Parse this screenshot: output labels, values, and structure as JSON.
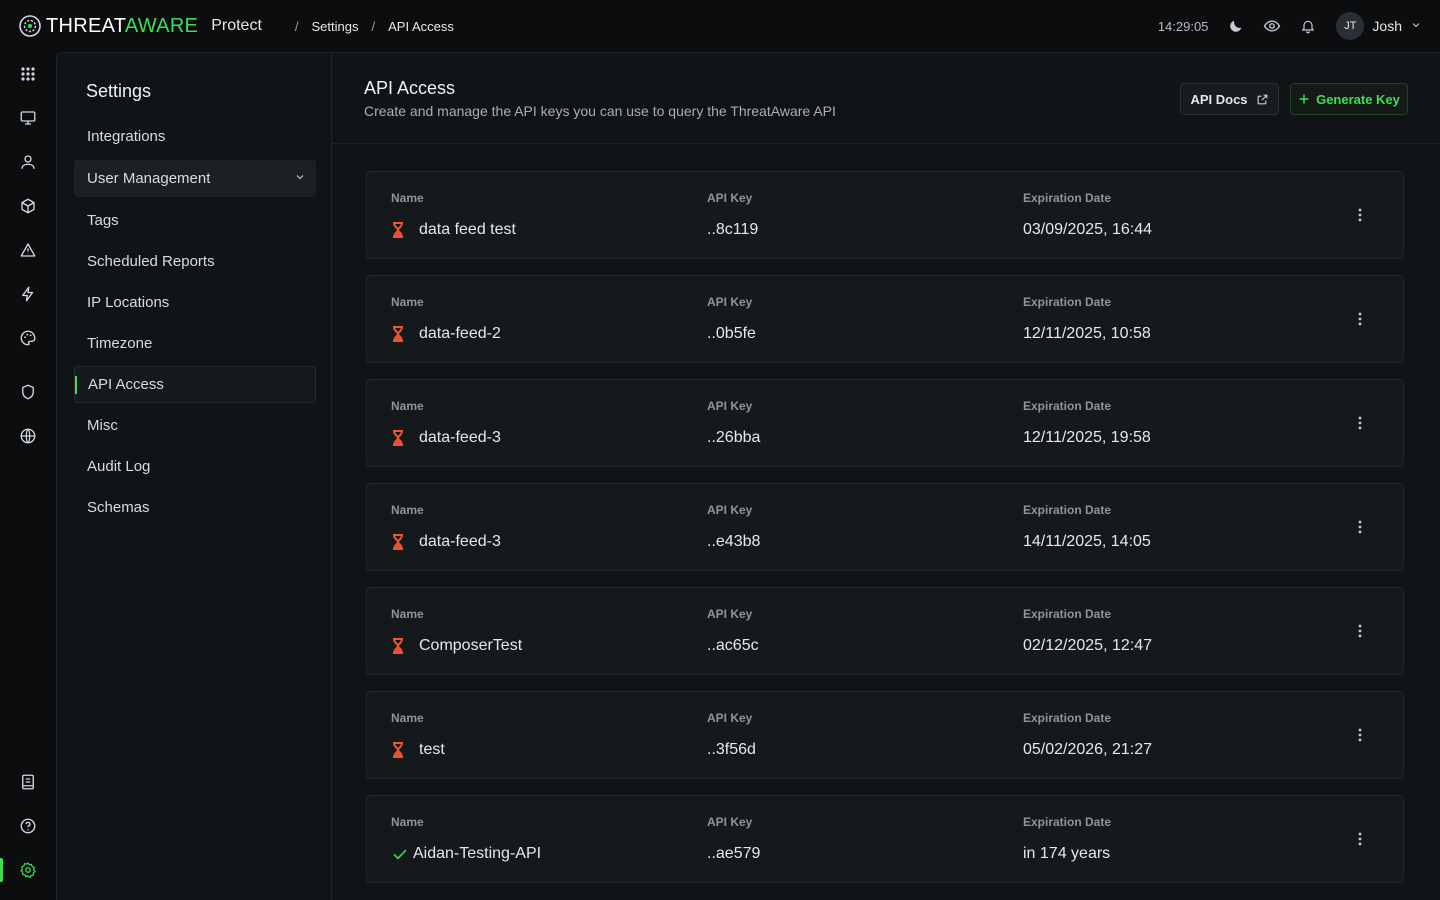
{
  "brand": {
    "threat": "THREAT",
    "aware": "AWARE",
    "product": "Protect"
  },
  "breadcrumb": [
    "Settings",
    "API Access"
  ],
  "topbar": {
    "clock": "14:29:05",
    "user_initials": "JT",
    "user_name": "Josh"
  },
  "rail": {
    "icons": [
      "grid-icon",
      "monitor-icon",
      "user-icon",
      "cube-icon",
      "alert-triangle-icon",
      "bolt-icon",
      "palette-icon",
      "shield-icon",
      "globe-icon",
      "notebook-icon",
      "help-icon",
      "gear-icon"
    ],
    "active": "gear-icon"
  },
  "settings": {
    "title": "Settings",
    "items": [
      {
        "label": "Integrations"
      },
      {
        "label": "User Management"
      },
      {
        "label": "Tags"
      },
      {
        "label": "Scheduled Reports"
      },
      {
        "label": "IP Locations"
      },
      {
        "label": "Timezone"
      },
      {
        "label": "API Access"
      },
      {
        "label": "Misc"
      },
      {
        "label": "Audit Log"
      },
      {
        "label": "Schemas"
      }
    ],
    "active": "API Access"
  },
  "page": {
    "title": "API Access",
    "subtitle": "Create and manage the API keys you can use to query the ThreatAware API",
    "docs_label": "API Docs",
    "generate_label": "Generate Key"
  },
  "columns": {
    "name": "Name",
    "key": "API Key",
    "expiry": "Expiration Date"
  },
  "keys": [
    {
      "name": "data feed test",
      "key": "..8c119",
      "expiry": "03/09/2025, 16:44",
      "status": "expiring"
    },
    {
      "name": "data-feed-2",
      "key": "..0b5fe",
      "expiry": "12/11/2025, 10:58",
      "status": "expiring"
    },
    {
      "name": "data-feed-3",
      "key": "..26bba",
      "expiry": "12/11/2025, 19:58",
      "status": "expiring"
    },
    {
      "name": "data-feed-3",
      "key": "..e43b8",
      "expiry": "14/11/2025, 14:05",
      "status": "expiring"
    },
    {
      "name": "ComposerTest",
      "key": "..ac65c",
      "expiry": "02/12/2025, 12:47",
      "status": "expiring"
    },
    {
      "name": "test",
      "key": "..3f56d",
      "expiry": "05/02/2026, 21:27",
      "status": "expiring"
    },
    {
      "name": "Aidan-Testing-API",
      "key": "..ae579",
      "expiry": "in 174 years",
      "status": "valid"
    }
  ],
  "colors": {
    "accent": "#3ddc5a",
    "expiring": "#f0552e",
    "background": "#0b0d0f",
    "panel": "#111417"
  }
}
